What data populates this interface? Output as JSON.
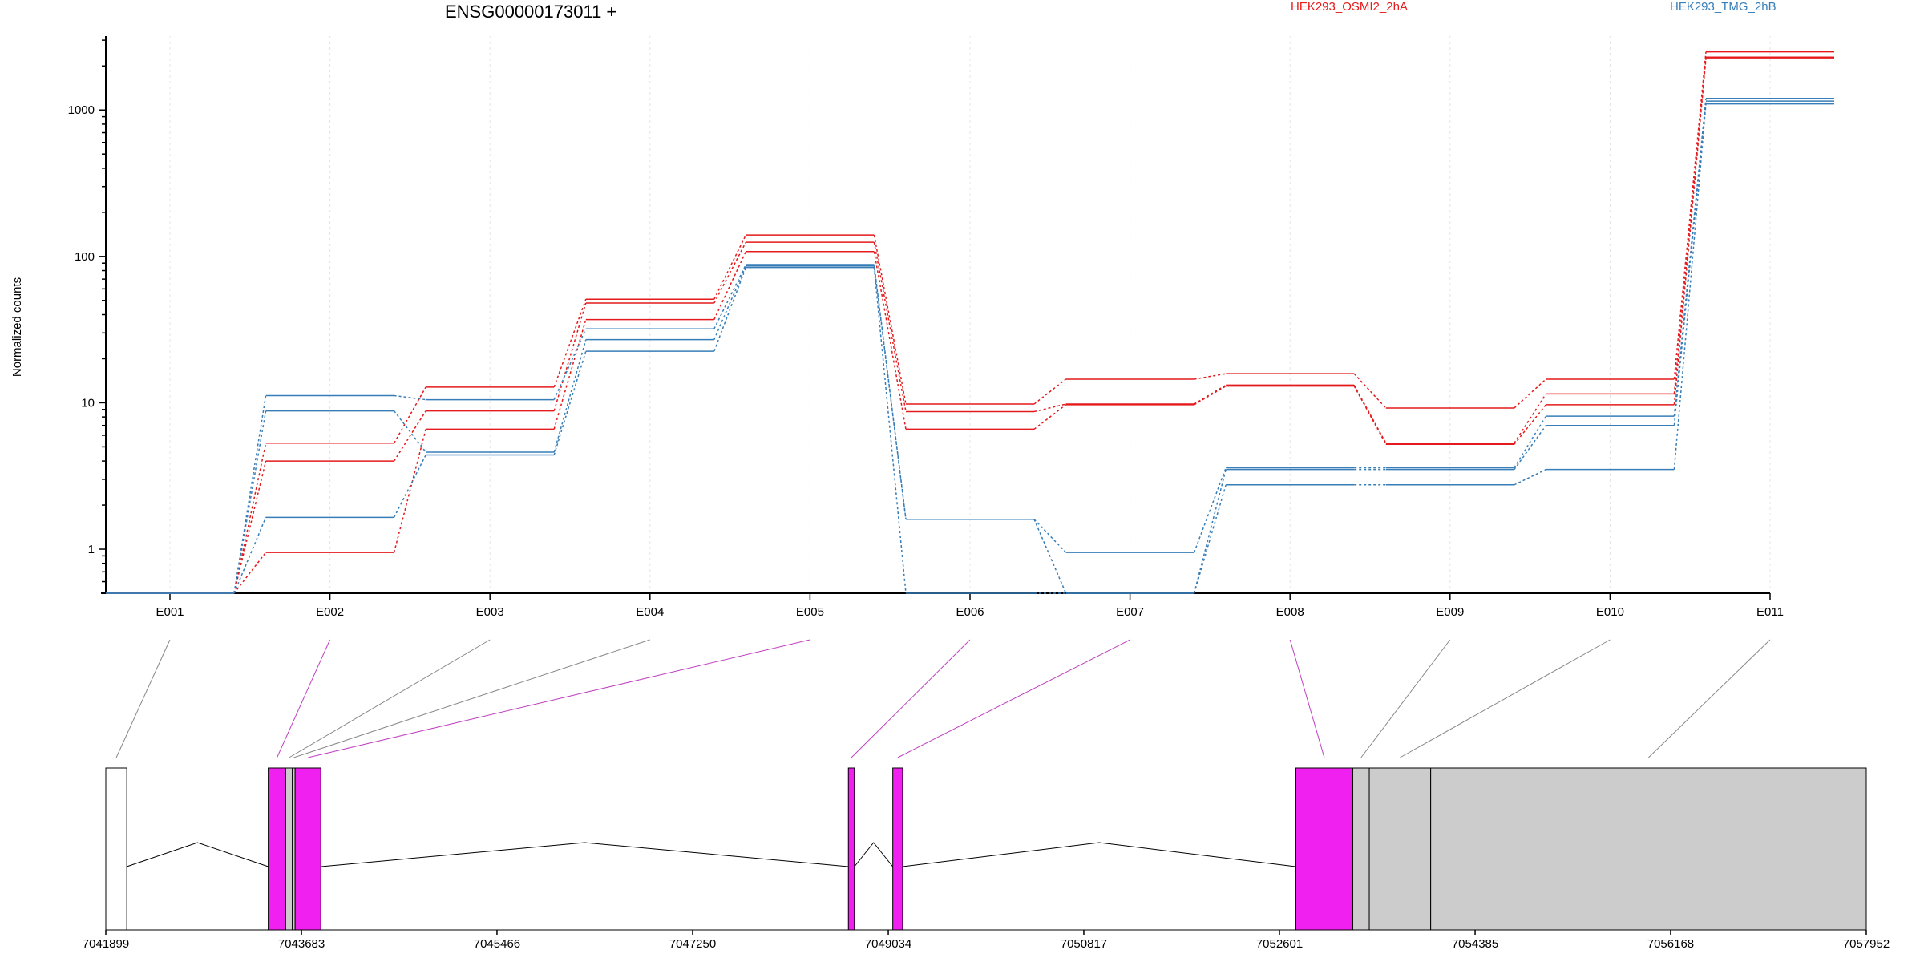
{
  "chart_data": {
    "type": "line",
    "title": "ENSG00000173011 +",
    "ylabel": "Normalized counts",
    "y_scale": "log",
    "ylim": [
      0.5,
      3200
    ],
    "y_ticks": [
      {
        "value": 1,
        "label": "1"
      },
      {
        "value": 10,
        "label": "10"
      },
      {
        "value": 100,
        "label": "100"
      },
      {
        "value": 1000,
        "label": "1000"
      }
    ],
    "categories": [
      "E001",
      "E002",
      "E003",
      "E004",
      "E005",
      "E006",
      "E007",
      "E008",
      "E009",
      "E010",
      "E011"
    ],
    "conditions": [
      {
        "name": "HEK293_OSMI2_2hA",
        "color": "#e41a1c"
      },
      {
        "name": "HEK293_TMG_2hB",
        "color": "#377eb8"
      }
    ],
    "series": [
      {
        "condition": 0,
        "values": [
          0.5,
          5.3,
          12.8,
          51,
          140,
          9.8,
          14.5,
          15.8,
          9.2,
          14.5,
          2500
        ]
      },
      {
        "condition": 0,
        "values": [
          0.5,
          4.0,
          8.8,
          48,
          125,
          8.7,
          9.8,
          13.2,
          5.3,
          11.5,
          2300
        ]
      },
      {
        "condition": 0,
        "values": [
          0.5,
          0.95,
          6.6,
          37,
          108,
          6.6,
          9.7,
          13.0,
          5.2,
          9.7,
          2250
        ]
      },
      {
        "condition": 1,
        "values": [
          0.5,
          11.2,
          10.5,
          32,
          88,
          1.6,
          0.95,
          3.6,
          3.6,
          8.1,
          1200
        ]
      },
      {
        "condition": 1,
        "values": [
          0.5,
          8.8,
          4.6,
          27,
          86,
          1.6,
          0.5,
          3.5,
          3.5,
          7.0,
          1150
        ]
      },
      {
        "condition": 1,
        "values": [
          0.5,
          1.65,
          4.4,
          22.5,
          84,
          0.5,
          0.5,
          2.75,
          2.75,
          3.5,
          1100
        ]
      }
    ],
    "gene_model": {
      "coordinate_ticks": [
        "7041899",
        "7043683",
        "7045466",
        "7047250",
        "7049034",
        "7050817",
        "7052601",
        "7054385",
        "7056168",
        "7057952"
      ],
      "exon_highlight_colors": {
        "significant": "#f020f0",
        "other": "#cccccc",
        "first": "#ffffff"
      },
      "exons": [
        {
          "id": "E001",
          "start": 7041899,
          "end": 7042090,
          "significant": false,
          "fill": "first"
        },
        {
          "id": "E002",
          "start": 7043380,
          "end": 7043540,
          "significant": true
        },
        {
          "id": "E003",
          "start": 7043540,
          "end": 7043600,
          "significant": false
        },
        {
          "id": "E004",
          "start": 7043600,
          "end": 7043625,
          "significant": false
        },
        {
          "id": "E005",
          "start": 7043625,
          "end": 7043860,
          "significant": true
        },
        {
          "id": "E006",
          "start": 7048670,
          "end": 7048725,
          "significant": true
        },
        {
          "id": "E007",
          "start": 7049075,
          "end": 7049165,
          "significant": true
        },
        {
          "id": "E008",
          "start": 7052750,
          "end": 7053270,
          "significant": true
        },
        {
          "id": "E009",
          "start": 7053270,
          "end": 7053420,
          "significant": false
        },
        {
          "id": "E010",
          "start": 7053420,
          "end": 7053980,
          "significant": false
        },
        {
          "id": "E011",
          "start": 7053980,
          "end": 7057952,
          "significant": false
        }
      ]
    }
  }
}
